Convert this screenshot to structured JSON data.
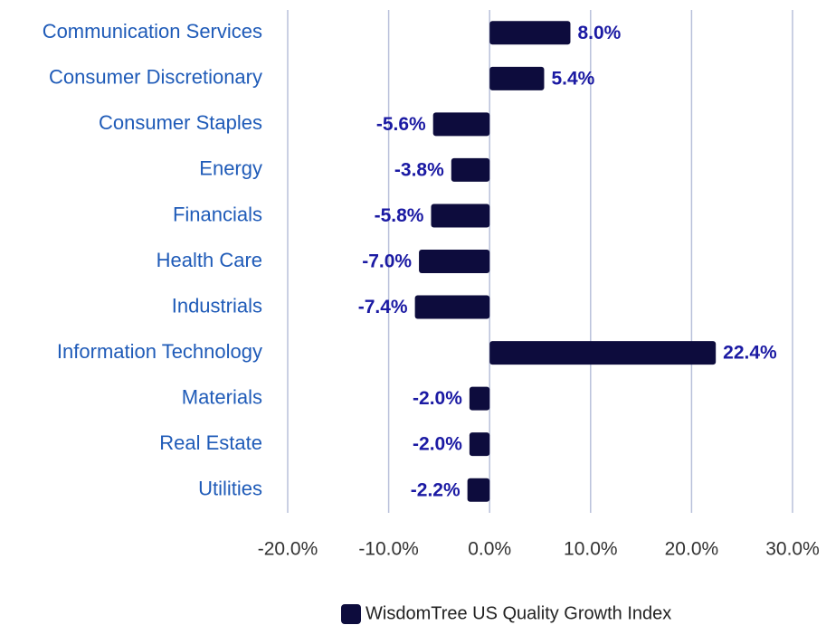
{
  "chart_data": {
    "type": "bar",
    "orientation": "horizontal",
    "categories": [
      "Communication Services",
      "Consumer Discretionary",
      "Consumer Staples",
      "Energy",
      "Financials",
      "Health Care",
      "Industrials",
      "Information Technology",
      "Materials",
      "Real Estate",
      "Utilities"
    ],
    "series": [
      {
        "name": "WisdomTree US Quality Growth Index",
        "color": "#0d0c3d",
        "values": [
          8.0,
          5.4,
          -5.6,
          -3.8,
          -5.8,
          -7.0,
          -7.4,
          22.4,
          -2.0,
          -2.0,
          -2.2
        ],
        "value_labels": [
          "8.0%",
          "5.4%",
          "-5.6%",
          "-3.8%",
          "-5.8%",
          "-7.0%",
          "-7.4%",
          "22.4%",
          "-2.0%",
          "-2.0%",
          "-2.2%"
        ]
      }
    ],
    "xlim": [
      -20,
      30
    ],
    "xticks": [
      {
        "value": -20,
        "label": "-20.0%"
      },
      {
        "value": -10,
        "label": "-10.0%"
      },
      {
        "value": 0,
        "label": "0.0%"
      },
      {
        "value": 10,
        "label": "10.0%"
      },
      {
        "value": 20,
        "label": "20.0%"
      },
      {
        "value": 30,
        "label": "30.0%"
      }
    ],
    "grid": true,
    "legend": "bottom"
  }
}
